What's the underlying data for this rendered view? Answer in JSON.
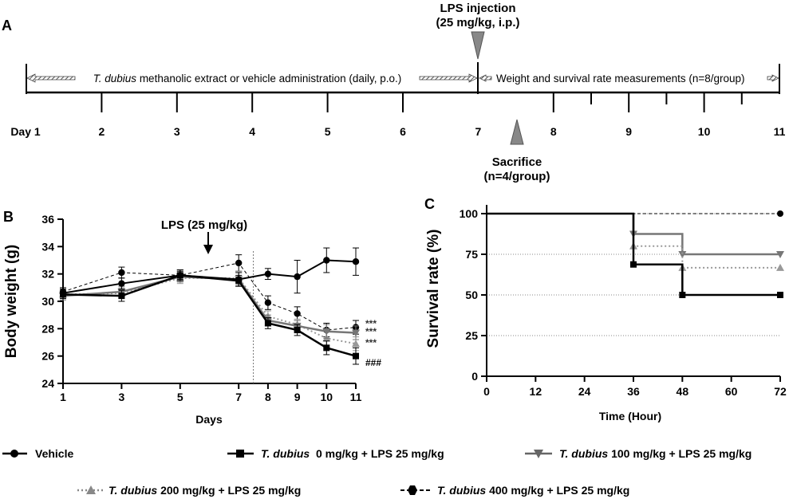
{
  "panel_labels": {
    "a": "A",
    "b": "B",
    "c": "C"
  },
  "timeline": {
    "injection_label_1": "LPS injection",
    "injection_label_2": "(25 mg/kg, i.p.)",
    "sacrifice_label_1": "Sacrifice",
    "sacrifice_label_2": "(n=4/group)",
    "admin_text_italic": "T. dubius",
    "admin_text_rest": " methanolic extract or vehicle administration (daily, p.o.)",
    "measure_text": "Weight and survival rate measurements (n=8/group)",
    "days": [
      "Day 1",
      "2",
      "3",
      "4",
      "5",
      "6",
      "7",
      "8",
      "9",
      "10",
      "11"
    ]
  },
  "legend": {
    "vehicle": {
      "rest": "Vehicle"
    },
    "d0": {
      "ital": "T. dubius",
      "rest": "  0 mg/kg + LPS 25 mg/kg"
    },
    "d100": {
      "ital": "T. dubius",
      "rest": " 100 mg/kg + LPS 25 mg/kg"
    },
    "d200": {
      "ital": "T. dubius",
      "rest": " 200 mg/kg + LPS 25 mg/kg"
    },
    "d400": {
      "ital": "T. dubius",
      "rest": " 400 mg/kg + LPS 25 mg/kg"
    }
  },
  "colors": {
    "black": "#000000",
    "dark_gray": "#666666",
    "gray": "#888888",
    "light_gray": "#999999"
  },
  "chart_data": [
    {
      "id": "body_weight",
      "type": "line",
      "title": "",
      "xlabel": "Days",
      "ylabel": "Body weight (g)",
      "xlim": [
        1,
        11
      ],
      "ylim": [
        24,
        36
      ],
      "xticks": [
        "1",
        "3",
        "5",
        "7",
        "8",
        "9",
        "10",
        "11"
      ],
      "yticks": [
        "24",
        "26",
        "28",
        "30",
        "32",
        "34",
        "36"
      ],
      "annotation": "LPS (25 mg/kg)",
      "lps_day": 7.5,
      "x": [
        1,
        3,
        5,
        7,
        8,
        9,
        10,
        11
      ],
      "series": [
        {
          "name": "Vehicle",
          "values": [
            30.6,
            31.3,
            31.9,
            31.6,
            32.0,
            31.8,
            33.0,
            32.9
          ],
          "errors": [
            0.3,
            0.4,
            0.4,
            0.5,
            0.4,
            1.2,
            0.9,
            1.0
          ]
        },
        {
          "name": "T. dubius 0 mg/kg + LPS 25 mg/kg",
          "values": [
            30.5,
            30.4,
            31.9,
            31.5,
            28.4,
            27.9,
            26.6,
            26.0
          ],
          "errors": [
            0.3,
            0.4,
            0.3,
            0.4,
            0.4,
            0.4,
            0.5,
            0.6
          ]
        },
        {
          "name": "T. dubius 100 mg/kg + LPS 25 mg/kg",
          "values": [
            30.4,
            30.7,
            31.8,
            31.6,
            28.6,
            28.2,
            27.8,
            27.7
          ],
          "errors": [
            0.3,
            0.4,
            0.4,
            0.5,
            0.4,
            0.4,
            0.5,
            0.5
          ]
        },
        {
          "name": "T. dubius 200 mg/kg + LPS 25 mg/kg",
          "values": [
            30.5,
            30.6,
            31.7,
            31.7,
            28.9,
            28.3,
            27.3,
            26.9
          ],
          "errors": [
            0.3,
            0.4,
            0.4,
            0.5,
            0.4,
            0.4,
            0.5,
            0.5
          ]
        },
        {
          "name": "T. dubius 400 mg/kg + LPS 25 mg/kg",
          "values": [
            30.7,
            32.1,
            31.9,
            32.8,
            29.9,
            29.1,
            27.9,
            28.1
          ],
          "errors": [
            0.3,
            0.4,
            0.4,
            0.6,
            0.5,
            0.5,
            0.5,
            0.5
          ]
        }
      ],
      "sig_labels": [
        "***",
        "***",
        "***",
        "###"
      ]
    },
    {
      "id": "survival",
      "type": "line",
      "title": "",
      "xlabel": "Time (Hour)",
      "ylabel": "Survival rate (%)",
      "xlim": [
        0,
        72
      ],
      "ylim": [
        0,
        100
      ],
      "xticks": [
        "0",
        "12",
        "24",
        "36",
        "48",
        "60",
        "72"
      ],
      "yticks": [
        "0",
        "25",
        "50",
        "75",
        "100"
      ],
      "grid": true,
      "series": [
        {
          "name": "T. dubius 400 mg/kg + LPS 25 mg/kg",
          "steps": [
            [
              0,
              100
            ],
            [
              72,
              100
            ]
          ],
          "points": [
            [
              72,
              100
            ]
          ]
        },
        {
          "name": "T. dubius 100 mg/kg + LPS 25 mg/kg",
          "steps": [
            [
              36,
              100
            ],
            [
              36,
              87.5
            ],
            [
              48,
              87.5
            ],
            [
              48,
              75
            ],
            [
              72,
              75
            ]
          ],
          "points": [
            [
              36,
              87.5
            ],
            [
              48,
              75
            ],
            [
              72,
              75
            ]
          ]
        },
        {
          "name": "T. dubius 200 mg/kg + LPS 25 mg/kg",
          "steps": [
            [
              36,
              100
            ],
            [
              36,
              80
            ],
            [
              48,
              80
            ],
            [
              48,
              66.7
            ],
            [
              72,
              66.7
            ]
          ],
          "points": [
            [
              36,
              80
            ],
            [
              48,
              66.7
            ],
            [
              72,
              66.7
            ]
          ]
        },
        {
          "name": "T. dubius 0 mg/kg + LPS 25 mg/kg",
          "steps": [
            [
              0,
              100
            ],
            [
              36,
              100
            ],
            [
              36,
              68.75
            ],
            [
              48,
              68.75
            ],
            [
              48,
              50
            ],
            [
              72,
              50
            ]
          ],
          "points": [
            [
              36,
              68.75
            ],
            [
              48,
              50
            ],
            [
              72,
              50
            ]
          ]
        }
      ]
    }
  ]
}
